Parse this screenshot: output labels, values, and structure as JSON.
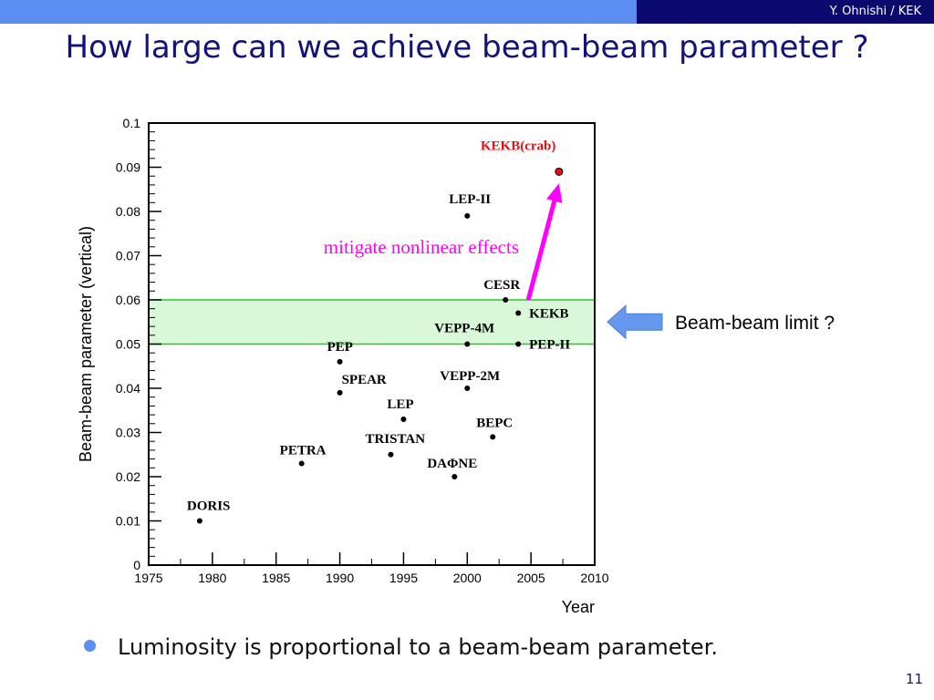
{
  "slide": {
    "title": "How large can we achieve beam-beam parameter ?",
    "author": "Y. Ohnishi / KEK",
    "bullet": "Luminosity is proportional to a beam-beam parameter.",
    "page_number": "11",
    "colors": {
      "header_bar": "#5b8ef0",
      "header_dark": "#0a0a6e",
      "title": "#12127a",
      "band": "#d8f8d8",
      "band_border": "#22cc22",
      "arrow": "#ff00ff",
      "kekb_crab": "#e81010",
      "side_arrow": "#6699ee"
    }
  },
  "chart_data": {
    "type": "scatter",
    "title": "",
    "xlabel": "Year",
    "ylabel": "Beam-beam parameter (vertical)",
    "xlim": [
      1975,
      2010
    ],
    "ylim": [
      0,
      0.1
    ],
    "x_ticks": [
      "1975",
      "1980",
      "1985",
      "1990",
      "1995",
      "2000",
      "2005",
      "2010"
    ],
    "y_ticks": [
      "0",
      "0.01",
      "0.02",
      "0.03",
      "0.04",
      "0.05",
      "0.06",
      "0.07",
      "0.08",
      "0.09",
      "0.1"
    ],
    "grid": false,
    "points": [
      {
        "label": "DORIS",
        "x": 1979,
        "y": 0.01
      },
      {
        "label": "PETRA",
        "x": 1987,
        "y": 0.023
      },
      {
        "label": "PEP",
        "x": 1990,
        "y": 0.046
      },
      {
        "label": "SPEAR",
        "x": 1990,
        "y": 0.039
      },
      {
        "label": "LEP",
        "x": 1995,
        "y": 0.033
      },
      {
        "label": "TRISTAN",
        "x": 1994,
        "y": 0.025
      },
      {
        "label": "DAΦNE",
        "x": 1999,
        "y": 0.02
      },
      {
        "label": "VEPP-2M",
        "x": 2000,
        "y": 0.04
      },
      {
        "label": "BEPC",
        "x": 2002,
        "y": 0.029
      },
      {
        "label": "VEPP-4M",
        "x": 2000,
        "y": 0.05
      },
      {
        "label": "PEP-II",
        "x": 2004,
        "y": 0.05
      },
      {
        "label": "KEKB",
        "x": 2004,
        "y": 0.057
      },
      {
        "label": "CESR",
        "x": 2003,
        "y": 0.06
      },
      {
        "label": "LEP-II",
        "x": 2000,
        "y": 0.079
      },
      {
        "label": "KEKB(crab)",
        "x": 2007.2,
        "y": 0.089,
        "highlight": true
      }
    ],
    "band": {
      "y_from": 0.05,
      "y_to": 0.06,
      "label": "Beam-beam limit ?"
    },
    "annotation": {
      "text": "mitigate nonlinear effects",
      "from": {
        "x": 2005,
        "y": 0.06
      },
      "to": {
        "x": 2007.2,
        "y": 0.088
      }
    }
  }
}
